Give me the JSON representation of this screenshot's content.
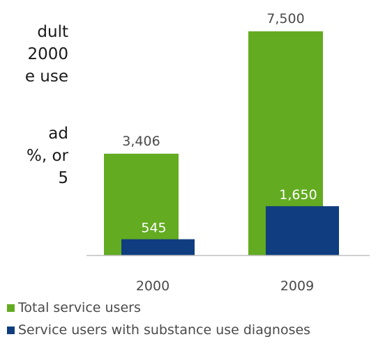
{
  "body_text": {
    "lines_a": [
      "dult",
      "2000",
      "e use"
    ],
    "lines_b": [
      "ad",
      "%, or",
      "5"
    ]
  },
  "chart_data": {
    "type": "bar",
    "categories": [
      "2000",
      "2009"
    ],
    "series": [
      {
        "name": "Total service users",
        "values": [
          3406,
          7500
        ],
        "color": "#63ab21",
        "labels": [
          "3,406",
          "7,500"
        ]
      },
      {
        "name": "Service users with substance use diagnoses",
        "values": [
          545,
          1650
        ],
        "color": "#0f3d7f",
        "labels": [
          "545",
          "1,650"
        ]
      }
    ],
    "ylim": [
      0,
      7500
    ],
    "grid": false,
    "legend_position": "bottom-left"
  }
}
